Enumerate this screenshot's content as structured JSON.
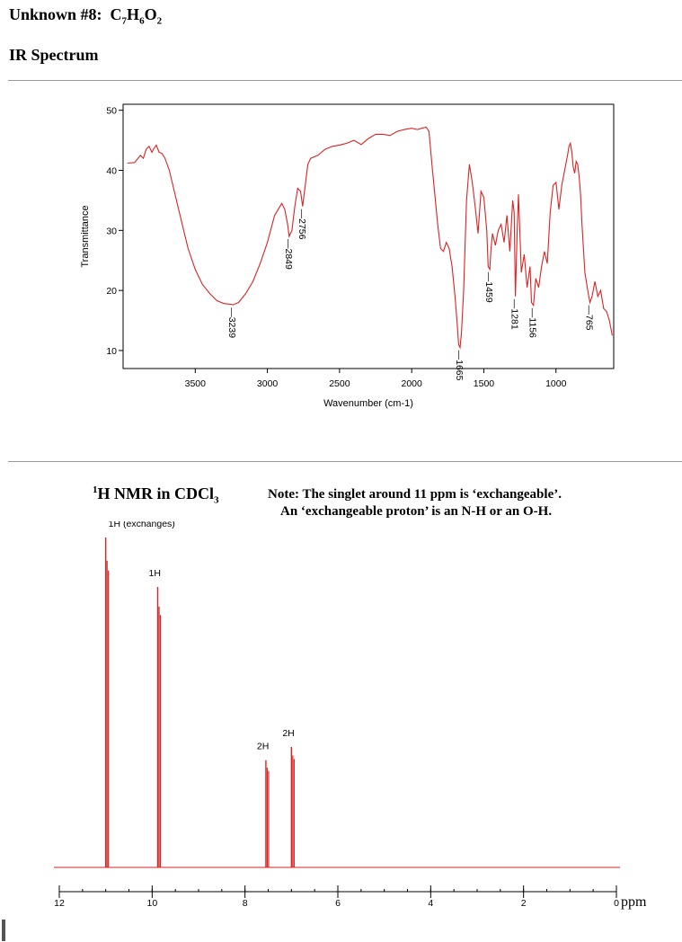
{
  "header": {
    "unknown_label": "Unknown #8:",
    "formula_parts": [
      {
        "t": "C",
        "sub": false
      },
      {
        "t": "7",
        "sub": true
      },
      {
        "t": "H",
        "sub": false
      },
      {
        "t": "6",
        "sub": true
      },
      {
        "t": "O",
        "sub": false
      },
      {
        "t": "2",
        "sub": true
      }
    ]
  },
  "ir_section": {
    "heading": "IR Spectrum"
  },
  "nmr_section": {
    "heading_sup": "1",
    "heading_main": "H  NMR in CDCl",
    "heading_sub": "3",
    "note_line1": "Note: The singlet around 11 ppm is ‘exchangeable’.",
    "note_line2": "An ‘exchangeable proton’ is an N-H or an O-H."
  },
  "colors": {
    "spectrum": "#dd2222",
    "axis": "#000000",
    "background": "#ffffff"
  },
  "chart_data": [
    {
      "type": "line",
      "xlabel": "Wavenumber (cm-1)",
      "ylabel": "Transmittance",
      "x_reversed": true,
      "xlim": [
        4000,
        600
      ],
      "ylim": [
        7,
        51
      ],
      "xticks": [
        3500,
        3000,
        2500,
        2000,
        1500,
        1000
      ],
      "yticks": [
        10,
        20,
        30,
        40,
        50
      ],
      "series": [
        {
          "x": [
            3970,
            3920,
            3880,
            3860,
            3840,
            3820,
            3800,
            3790,
            3770,
            3750,
            3730,
            3710,
            3680,
            3650,
            3600,
            3550,
            3500,
            3450,
            3400,
            3350,
            3300,
            3250,
            3239,
            3200,
            3150,
            3100,
            3050,
            3000,
            2950,
            2900,
            2880,
            2860,
            2849,
            2830,
            2810,
            2790,
            2770,
            2756,
            2740,
            2720,
            2700,
            2650,
            2600,
            2550,
            2500,
            2450,
            2400,
            2350,
            2300,
            2250,
            2200,
            2150,
            2100,
            2050,
            2000,
            1960,
            1930,
            1900,
            1880,
            1860,
            1840,
            1820,
            1800,
            1780,
            1760,
            1740,
            1720,
            1700,
            1685,
            1675,
            1665,
            1655,
            1640,
            1620,
            1600,
            1580,
            1560,
            1540,
            1520,
            1500,
            1480,
            1470,
            1459,
            1450,
            1440,
            1420,
            1400,
            1380,
            1360,
            1340,
            1320,
            1300,
            1290,
            1281,
            1270,
            1260,
            1240,
            1220,
            1200,
            1180,
            1170,
            1156,
            1140,
            1120,
            1100,
            1080,
            1060,
            1040,
            1020,
            1000,
            980,
            960,
            940,
            920,
            910,
            900,
            890,
            880,
            870,
            860,
            850,
            840,
            830,
            820,
            800,
            780,
            765,
            750,
            730,
            710,
            690,
            670,
            650,
            630,
            610
          ],
          "y": [
            41.2,
            41.3,
            42.5,
            42.0,
            43.5,
            44.0,
            43.0,
            43.5,
            44.2,
            43.0,
            42.8,
            42.0,
            40.0,
            37.0,
            32.0,
            27.0,
            23.5,
            21.0,
            19.5,
            18.3,
            17.8,
            17.7,
            17.6,
            18.0,
            19.5,
            21.5,
            24.5,
            28.0,
            32.5,
            34.5,
            33.5,
            31.0,
            29.0,
            30.0,
            34.0,
            37.0,
            36.5,
            34.0,
            37.0,
            41.0,
            42.0,
            42.5,
            43.5,
            44.0,
            44.2,
            44.5,
            45.0,
            44.3,
            45.3,
            46.0,
            46.0,
            45.8,
            46.5,
            46.8,
            47.0,
            46.8,
            47.0,
            47.2,
            46.5,
            41.0,
            36.0,
            31.0,
            27.0,
            26.5,
            28.0,
            27.0,
            24.0,
            19.0,
            14.5,
            11.0,
            10.5,
            13.0,
            20.0,
            35.0,
            41.0,
            38.0,
            34.0,
            29.5,
            36.5,
            35.5,
            30.0,
            24.0,
            23.5,
            27.0,
            29.5,
            27.5,
            30.0,
            31.0,
            28.0,
            32.5,
            26.5,
            35.0,
            33.0,
            19.0,
            29.0,
            36.0,
            23.0,
            26.0,
            20.5,
            24.0,
            18.0,
            17.5,
            22.0,
            20.5,
            24.0,
            26.5,
            24.5,
            33.0,
            37.5,
            38.0,
            33.5,
            37.5,
            40.0,
            42.5,
            44.0,
            44.5,
            43.0,
            40.5,
            39.5,
            41.5,
            41.0,
            39.0,
            36.0,
            31.0,
            23.0,
            20.0,
            18.0,
            19.0,
            21.5,
            19.0,
            20.0,
            17.0,
            16.5,
            15.0,
            12.5
          ],
          "annotations": [
            {
              "x": 3239,
              "label": "3239"
            },
            {
              "x": 2849,
              "label": "2849"
            },
            {
              "x": 2756,
              "label": "2756"
            },
            {
              "x": 1665,
              "label": "1665"
            },
            {
              "x": 1459,
              "label": "1459"
            },
            {
              "x": 1281,
              "label": "1281"
            },
            {
              "x": 1156,
              "label": "1156"
            },
            {
              "x": 765,
              "label": "765"
            }
          ]
        }
      ]
    },
    {
      "type": "line",
      "xlabel": "ppm",
      "x_reversed": true,
      "xlim": [
        12,
        0
      ],
      "xticks": [
        12,
        10,
        8,
        6,
        4,
        2,
        0
      ],
      "peaks": [
        {
          "ppm": 11.0,
          "height": 1.0,
          "label": "1H (exchanges)"
        },
        {
          "ppm": 9.88,
          "height": 0.85,
          "label": "1H"
        },
        {
          "ppm": 7.55,
          "height": 0.325,
          "label": "2H"
        },
        {
          "ppm": 7.0,
          "height": 0.365,
          "label": "2H"
        }
      ]
    }
  ]
}
